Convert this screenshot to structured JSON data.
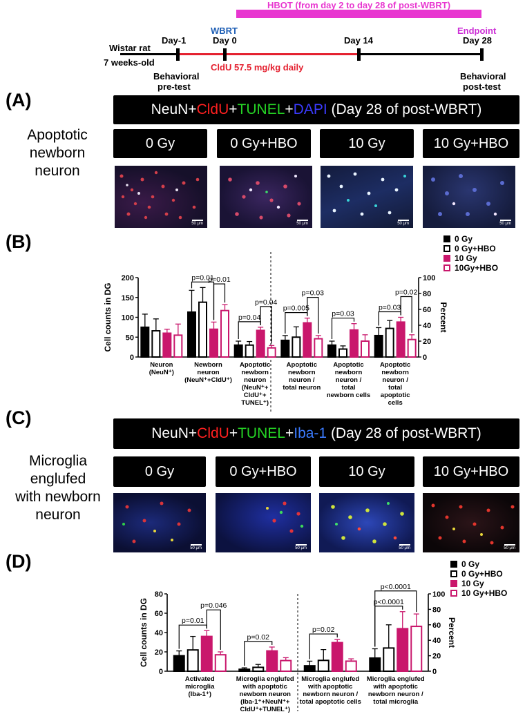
{
  "timeline": {
    "hbot_label": "HBOT (from day 2 to day 28 of post-WBRT)",
    "wbrt_label": "WBRT",
    "endpoint_label": "Endpoint",
    "subject": "Wistar rat",
    "subject_age": "7 weeks-old",
    "day_minus1": "Day-1",
    "day0": "Day 0",
    "day14": "Day 14",
    "day28": "Day 28",
    "cldu_label": "CldU 57.5 mg/kg daily",
    "pretest_line1": "Behavioral",
    "pretest_line2": "pre-test",
    "posttest_line1": "Behavioral",
    "posttest_line2": "post-test",
    "colors": {
      "hbot": "#e836d0",
      "wbrt": "#1f5fb5",
      "cldu": "#e4202f",
      "endpoint": "#cc2fd6"
    }
  },
  "panelA": {
    "letter": "(A)",
    "side_line1": "Apoptotic",
    "side_line2": "newborn",
    "side_line3": "neuron",
    "stain": {
      "p1": "NeuN+",
      "p2": "CldU",
      "p3": "+",
      "p4": "TUNEL",
      "p5": "+",
      "p6": "DAPI",
      "p7": " (Day 28 of post-WBRT)"
    },
    "groups": [
      "0 Gy",
      "0 Gy+HBO",
      "10 Gy",
      "10 Gy+HBO"
    ],
    "scale": "50 μm"
  },
  "panelB": {
    "letter": "(B)",
    "legend": [
      "0 Gy",
      "0 Gy+HBO",
      "10 Gy",
      "10Gy+HBO"
    ]
  },
  "panelC": {
    "letter": "(C)",
    "side_line1": "Microglia",
    "side_line2": "englufed",
    "side_line3": "with newborn",
    "side_line4": "neuron",
    "stain": {
      "p1": "NeuN+",
      "p2": "CldU",
      "p3": "+",
      "p4": "TUNEL",
      "p5": "+",
      "p6": "Iba-1",
      "p7": " (Day 28 of post-WBRT)"
    },
    "groups": [
      "0 Gy",
      "0 Gy+HBO",
      "10 Gy",
      "10 Gy+HBO"
    ],
    "scale": "50 μm"
  },
  "panelD": {
    "letter": "(D)",
    "legend": [
      "0 Gy",
      "0 Gy+HBO",
      "10 Gy",
      "10 Gy+HBO"
    ]
  },
  "chart_data": [
    {
      "type": "bar",
      "panel": "B",
      "ylabel": "Cell counts in DG",
      "y2label": "Percent",
      "ylim": [
        0,
        200
      ],
      "y2lim": [
        0,
        100
      ],
      "yticks": [
        0,
        50,
        100,
        150,
        200
      ],
      "y2ticks": [
        0,
        20,
        40,
        60,
        80,
        100
      ],
      "series_names": [
        "0 Gy",
        "0 Gy+HBO",
        "10 Gy",
        "10Gy+HBO"
      ],
      "groups": [
        {
          "label": [
            "Neuron",
            "(NeuN⁺)"
          ],
          "axis": "left",
          "values": [
            75,
            66,
            60,
            55
          ],
          "errors": [
            33,
            30,
            10,
            28
          ]
        },
        {
          "label": [
            "Newborn",
            "neuron",
            "(NeuN⁺+CldU⁺)"
          ],
          "axis": "left",
          "values": [
            113,
            138,
            70,
            117
          ],
          "errors": [
            55,
            37,
            18,
            15
          ]
        },
        {
          "label": [
            "Apoptotic",
            "newborn",
            "neuron",
            "(NeuN⁺+",
            "CldU⁺+",
            "TUNEL⁺)"
          ],
          "axis": "left",
          "values": [
            30,
            30,
            67,
            23
          ],
          "errors": [
            10,
            9,
            8,
            6
          ]
        },
        {
          "label": [
            "Apoptotic",
            "newborn",
            "neuron /",
            "total neuron"
          ],
          "axis": "right",
          "values": [
            21,
            25,
            43,
            23
          ],
          "errors": [
            6,
            13,
            6,
            4
          ]
        },
        {
          "label": [
            "Apoptotic",
            "newborn",
            "neuron /",
            "total",
            "newborn cells"
          ],
          "axis": "right",
          "values": [
            15,
            10,
            34,
            20
          ],
          "errors": [
            5,
            4,
            8,
            8
          ]
        },
        {
          "label": [
            "Apoptotic",
            "newborn",
            "neuron /",
            "total",
            "apoptotic",
            "cells"
          ],
          "axis": "right",
          "values": [
            27,
            36,
            44,
            22
          ],
          "errors": [
            10,
            10,
            6,
            6
          ]
        }
      ],
      "significance": [
        {
          "group": 1,
          "from": 0,
          "to": 2,
          "label": "p=0.01"
        },
        {
          "group": 1,
          "from": 2,
          "to": 3,
          "label": "p=0.01"
        },
        {
          "group": 2,
          "from": 0,
          "to": 2,
          "label": "p=0.04"
        },
        {
          "group": 2,
          "from": 2,
          "to": 3,
          "label": "p=0.04"
        },
        {
          "group": 3,
          "from": 0,
          "to": 2,
          "label": "p=0.005"
        },
        {
          "group": 3,
          "from": 2,
          "to": 3,
          "label": "p=0.03"
        },
        {
          "group": 4,
          "from": 0,
          "to": 2,
          "label": "p=0.03"
        },
        {
          "group": 5,
          "from": 0,
          "to": 2,
          "label": "p=0.03"
        },
        {
          "group": 5,
          "from": 2,
          "to": 3,
          "label": "p=0.02"
        }
      ],
      "colors": [
        "#000000",
        "#ffffff",
        "#c9176c",
        "#ffffff"
      ],
      "edge_colors": [
        "#000000",
        "#000000",
        "#c9176c",
        "#c9176c"
      ]
    },
    {
      "type": "bar",
      "panel": "D",
      "ylabel": "Cell counts in DG",
      "y2label": "Percent",
      "ylim": [
        0,
        80
      ],
      "y2lim": [
        0,
        100
      ],
      "yticks": [
        0,
        20,
        40,
        60,
        80
      ],
      "y2ticks": [
        0,
        20,
        40,
        60,
        80,
        100
      ],
      "series_names": [
        "0 Gy",
        "0 Gy+HBO",
        "10 Gy",
        "10 Gy+HBO"
      ],
      "groups": [
        {
          "label": [
            "Activated",
            "microglia",
            "(Iba-1⁺)"
          ],
          "axis": "left",
          "values": [
            16,
            22,
            36,
            17
          ],
          "errors": [
            5,
            14,
            6,
            3
          ]
        },
        {
          "label": [
            "Microglia englufed",
            "with apoptotic",
            "newborn neuron",
            "(Iba-1⁺+NeuN⁺+",
            "CldU⁺+TUNEL⁺)"
          ],
          "axis": "left",
          "values": [
            2,
            4,
            21,
            11
          ],
          "errors": [
            1.5,
            3,
            4,
            3
          ]
        },
        {
          "label": [
            "Microglia englufed",
            "with apoptotic",
            "newborn neuron /",
            "total apoptotic cells"
          ],
          "axis": "right",
          "values": [
            7,
            14,
            37,
            13
          ],
          "errors": [
            6,
            14,
            4,
            3
          ]
        },
        {
          "label": [
            "Microglia englufed",
            "with apoptotic",
            "newborn neuron /",
            "total microglia"
          ],
          "axis": "right",
          "values": [
            17,
            30,
            55,
            58
          ],
          "errors": [
            12,
            30,
            22,
            16
          ]
        }
      ],
      "significance": [
        {
          "group": 0,
          "from": 0,
          "to": 2,
          "label": "p=0.01"
        },
        {
          "group": 0,
          "from": 2,
          "to": 3,
          "label": "p=0.046"
        },
        {
          "group": 1,
          "from": 0,
          "to": 2,
          "label": "p=0.02"
        },
        {
          "group": 2,
          "from": 0,
          "to": 2,
          "label": "p=0.02"
        },
        {
          "group": 3,
          "from": 0,
          "to": 2,
          "label": "p<0.0001"
        },
        {
          "group": 3,
          "from": 0,
          "to": 3,
          "label": "p<0.0001"
        }
      ],
      "colors": [
        "#000000",
        "#ffffff",
        "#c9176c",
        "#ffffff"
      ],
      "edge_colors": [
        "#000000",
        "#000000",
        "#c9176c",
        "#c9176c"
      ]
    }
  ]
}
